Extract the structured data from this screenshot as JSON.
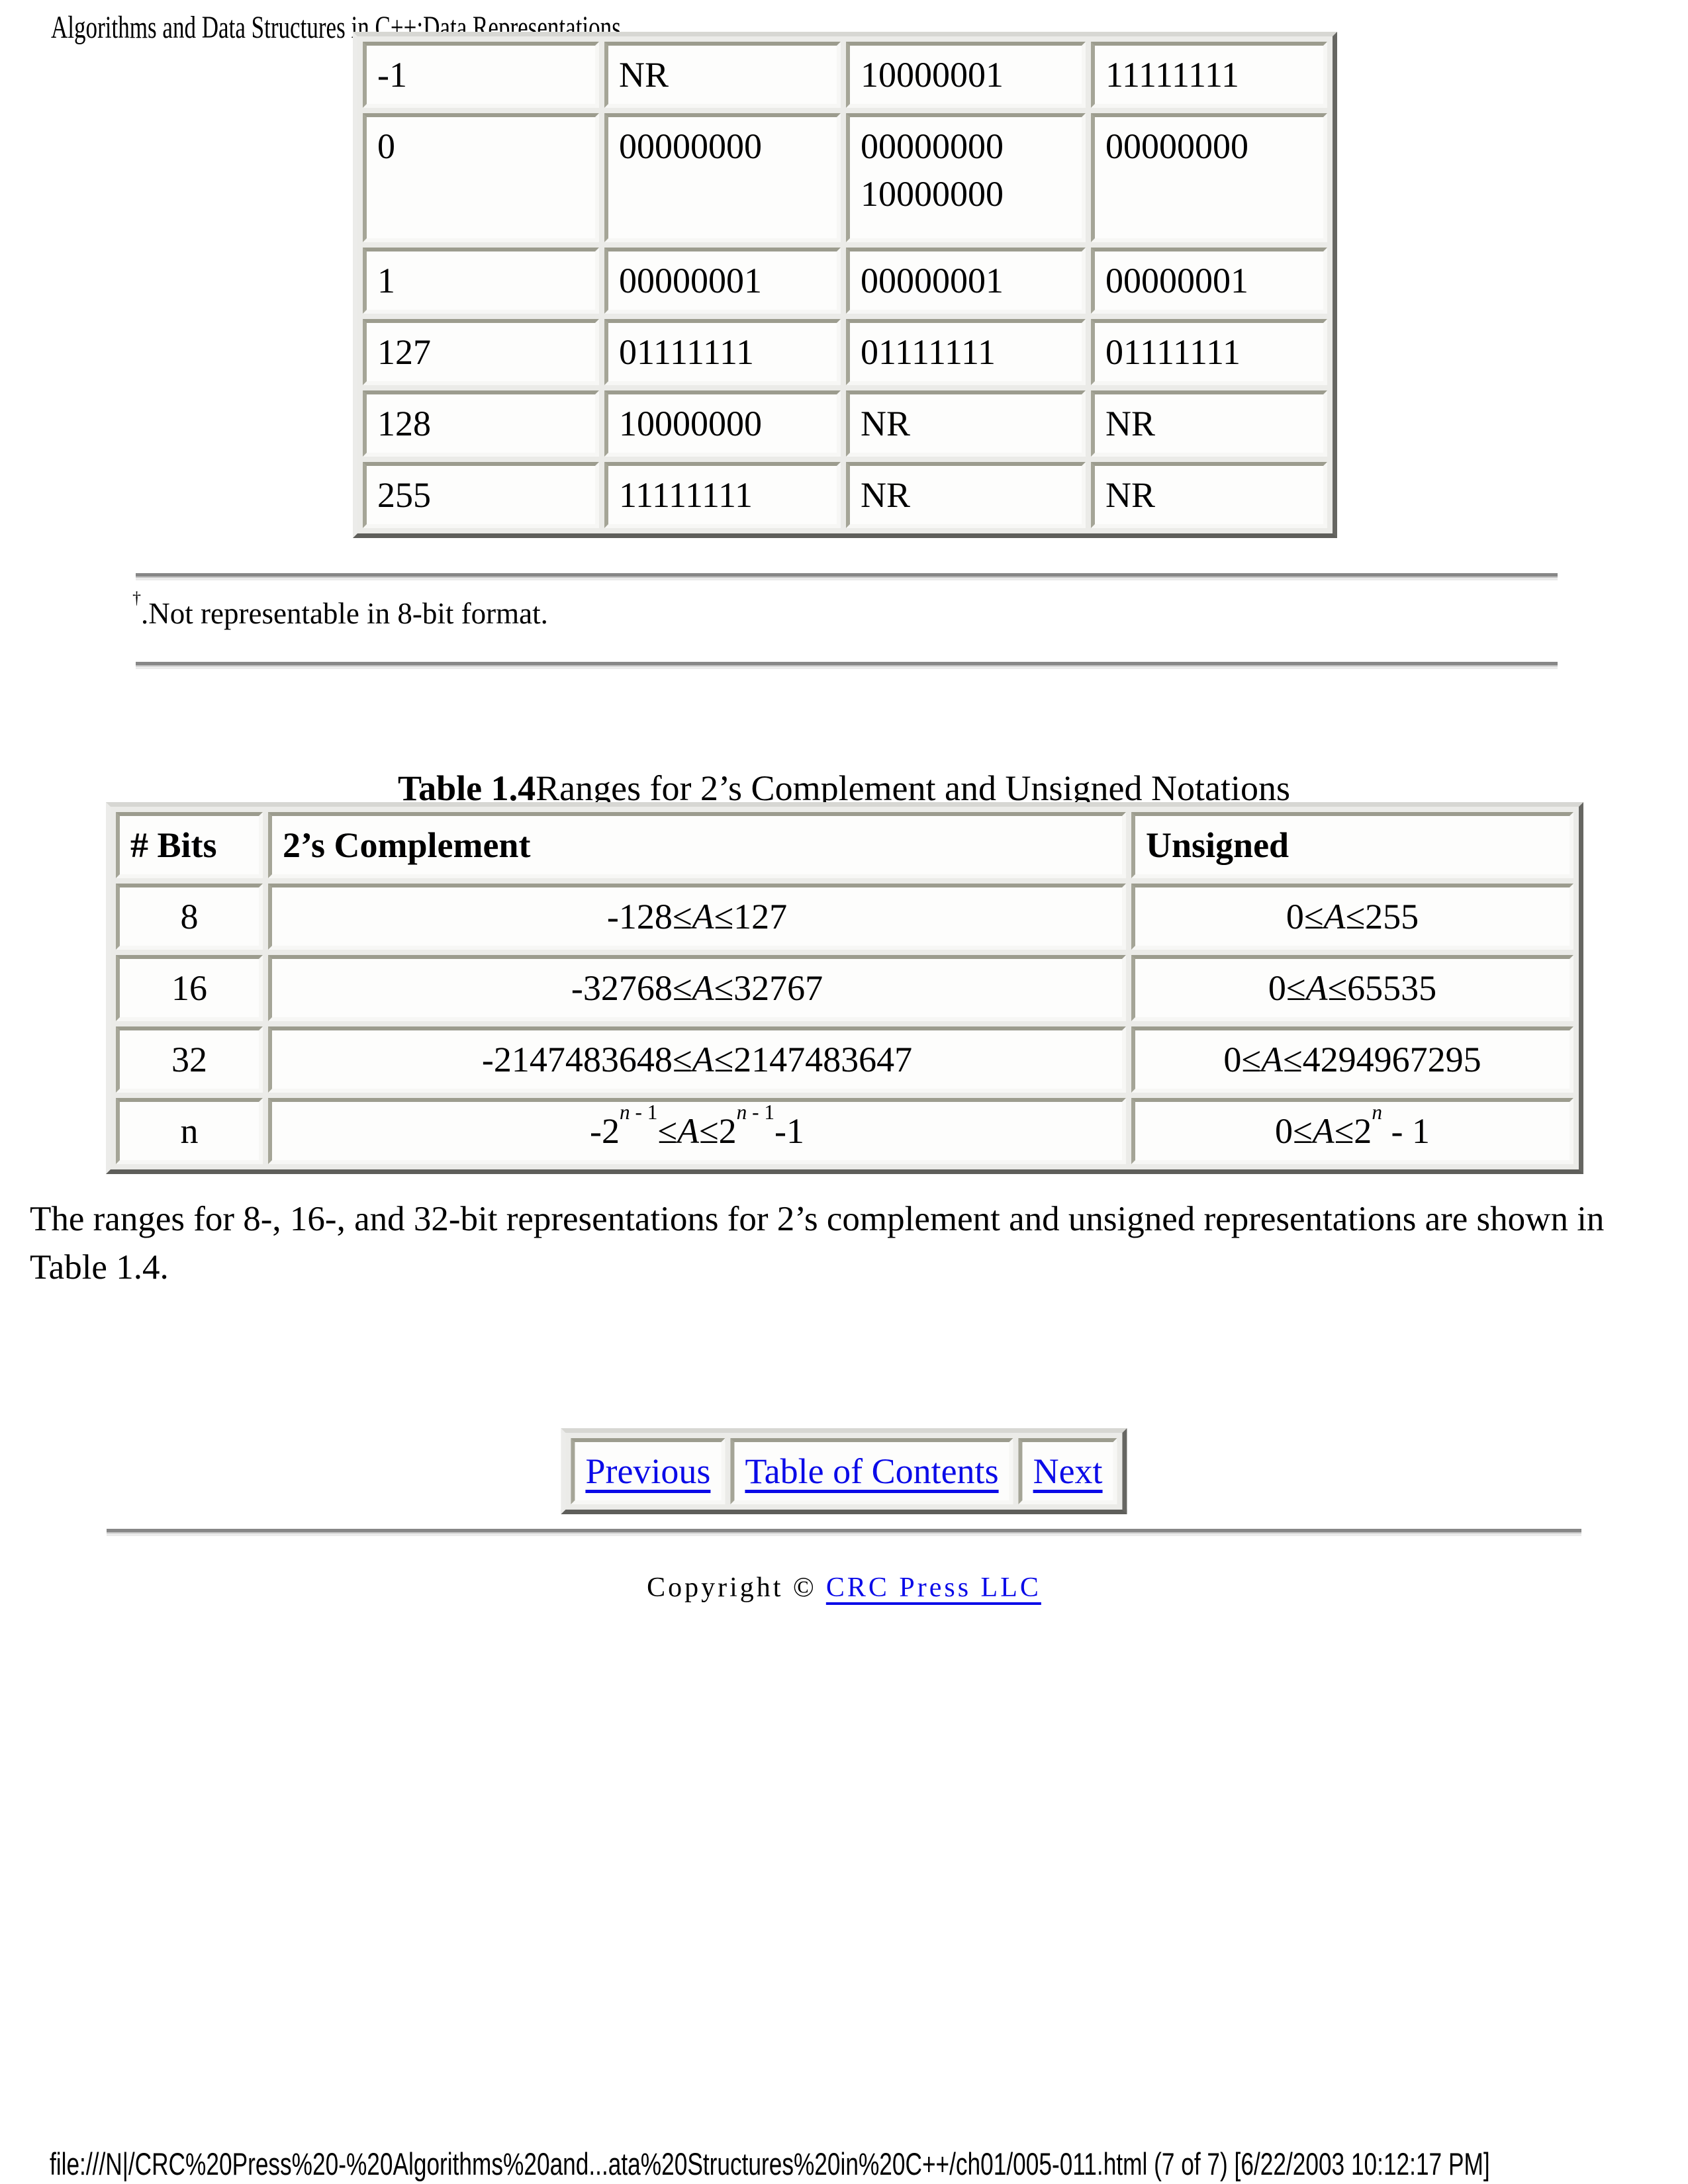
{
  "print_header": {
    "title": "Algorithms and Data Structures in C++:Data Representations"
  },
  "table1": {
    "rows": [
      {
        "cells": [
          "-1",
          "NR",
          "10000001",
          "11111111"
        ]
      },
      {
        "cells": [
          "0",
          "00000000",
          "00000000\n10000000",
          "00000000"
        ]
      },
      {
        "cells": [
          "1",
          "00000001",
          "00000001",
          "00000001"
        ]
      },
      {
        "cells": [
          "127",
          "01111111",
          "01111111",
          "01111111"
        ]
      },
      {
        "cells": [
          "128",
          "10000000",
          "NR",
          "NR"
        ]
      },
      {
        "cells": [
          "255",
          "11111111",
          "NR",
          "NR"
        ]
      }
    ]
  },
  "footnote": {
    "segments": [
      {
        "t": "†",
        "sup": true
      },
      {
        "t": ".Not representable in 8-bit format."
      }
    ]
  },
  "table2": {
    "caption_bold": "Table 1.4",
    "caption_rest": "Ranges for 2’s Complement and Unsigned Notations",
    "headers": [
      "# Bits",
      "2’s Complement",
      "Unsigned"
    ],
    "rows": [
      {
        "bits": "8",
        "complement": [
          {
            "t": "-128≤"
          },
          {
            "t": "A",
            "i": true
          },
          {
            "t": "≤127"
          }
        ],
        "unsigned": [
          {
            "t": "0≤"
          },
          {
            "t": "A",
            "i": true
          },
          {
            "t": "≤255"
          }
        ]
      },
      {
        "bits": "16",
        "complement": [
          {
            "t": "-32768≤"
          },
          {
            "t": "A",
            "i": true
          },
          {
            "t": "≤32767"
          }
        ],
        "unsigned": [
          {
            "t": "0≤"
          },
          {
            "t": "A",
            "i": true
          },
          {
            "t": "≤65535"
          }
        ]
      },
      {
        "bits": "32",
        "complement": [
          {
            "t": "-2147483648≤"
          },
          {
            "t": "A",
            "i": true
          },
          {
            "t": "≤2147483647"
          }
        ],
        "unsigned": [
          {
            "t": "0≤"
          },
          {
            "t": "A",
            "i": true
          },
          {
            "t": "≤4294967295"
          }
        ]
      },
      {
        "bits": "n",
        "complement": [
          {
            "t": "-2"
          },
          {
            "t": "n",
            "sup": true,
            "i": true
          },
          {
            "t": " - 1",
            "sup": true
          },
          {
            "t": "≤"
          },
          {
            "t": "A",
            "i": true
          },
          {
            "t": "≤2"
          },
          {
            "t": "n",
            "sup": true,
            "i": true
          },
          {
            "t": " - 1",
            "sup": true
          },
          {
            "t": "-1"
          }
        ],
        "unsigned": [
          {
            "t": "0≤"
          },
          {
            "t": "A",
            "i": true
          },
          {
            "t": "≤2"
          },
          {
            "t": "n",
            "sup": true,
            "i": true
          },
          {
            "t": " - 1"
          }
        ]
      }
    ]
  },
  "paragraph": "The ranges for 8-, 16-, and 32-bit representations for 2’s complement and unsigned representations are shown in Table 1.4.",
  "nav": {
    "previous_label": "Previous",
    "toc_label": "Table of Contents",
    "next_label": "Next"
  },
  "copyright": {
    "prefix": "Copyright ©",
    "link_label": "CRC Press LLC"
  },
  "print_footer": {
    "text": "file:///N|/CRC%20Press%20-%20Algorithms%20and...ata%20Structures%20in%20C++/ch01/005-011.html (7 of 7) [6/22/2003 10:12:17 PM]"
  },
  "colors": {
    "link_blue": "#0b0be8",
    "bevel_dark": "#9c9c8e",
    "bevel_light": "#f7f7f5",
    "hr_gray": "#878787"
  }
}
